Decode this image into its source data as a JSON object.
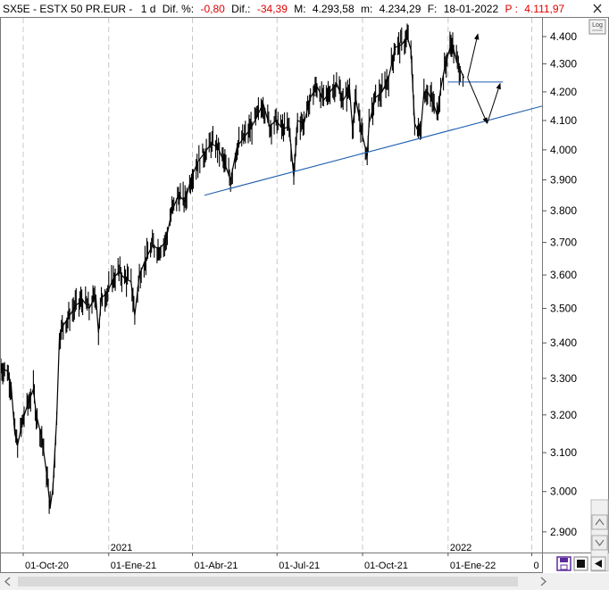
{
  "header": {
    "symbol": "SX5E - ESTX 50 PR.EUR -",
    "period": "1 d",
    "dif_pct_label": "Dif. %:",
    "dif_pct_value": "-0,80",
    "dif_label": "Dif.:",
    "dif_value": "-34,39",
    "max_label": "M:",
    "max_value": "4.293,58",
    "min_label": "m:",
    "min_value": "4.234,29",
    "date_label": "F:",
    "date_value": "18-01-2022",
    "price_label": "P :",
    "price_value": "4.111,97",
    "negative_color": "#e00000",
    "close_icon": "close-icon"
  },
  "controls": {
    "log_label": "Log",
    "save_icon": "save-icon",
    "color_icon": "color-swatch-icon",
    "scroll_left_icon": "chevron-left-icon",
    "scroll_right_icon": "chevron-right-icon",
    "scroll_up_icon": "chevron-up-icon",
    "scroll_down_icon": "chevron-down-icon"
  },
  "chart_data": {
    "type": "line",
    "x_tick_labels": [
      "01-Oct-20",
      "01-Ene-21",
      "01-Abr-21",
      "01-Jul-21",
      "01-Oct-21",
      "01-Ene-22",
      "0"
    ],
    "x_ticks": [
      "2020-10-01",
      "2021-01-01",
      "2021-04-01",
      "2021-07-01",
      "2021-10-01",
      "2022-01-01",
      "2022-04-01"
    ],
    "year_labels": [
      {
        "date": "2021-01-01",
        "label": "2021"
      },
      {
        "date": "2022-01-01",
        "label": "2022"
      }
    ],
    "x_range": [
      "2020-09-07",
      "2022-04-12"
    ],
    "y_ticks": [
      2900,
      3000,
      3100,
      3200,
      3300,
      3400,
      3500,
      3600,
      3700,
      3800,
      3900,
      4000,
      4100,
      4200,
      4300,
      4400
    ],
    "y_tick_labels": [
      "2.900",
      "3.000",
      "3.100",
      "3.200",
      "3.300",
      "3.400",
      "3.500",
      "3.600",
      "3.700",
      "3.800",
      "3.900",
      "4.000",
      "4.100",
      "4.200",
      "4.300",
      "4.400"
    ],
    "ylim": [
      2850,
      4470
    ],
    "y_scale": "log",
    "grid": "vertical dashed at x ticks",
    "series": [
      {
        "color": "#000000",
        "points": [
          [
            "2020-09-07",
            3330
          ],
          [
            "2020-09-14",
            3320
          ],
          [
            "2020-09-18",
            3280
          ],
          [
            "2020-09-22",
            3150
          ],
          [
            "2020-09-25",
            3120
          ],
          [
            "2020-10-01",
            3190
          ],
          [
            "2020-10-06",
            3230
          ],
          [
            "2020-10-12",
            3270
          ],
          [
            "2020-10-15",
            3200
          ],
          [
            "2020-10-21",
            3140
          ],
          [
            "2020-10-26",
            3050
          ],
          [
            "2020-10-30",
            2960
          ],
          [
            "2020-11-02",
            3010
          ],
          [
            "2020-11-06",
            3190
          ],
          [
            "2020-11-09",
            3420
          ],
          [
            "2020-11-13",
            3450
          ],
          [
            "2020-11-20",
            3480
          ],
          [
            "2020-11-27",
            3510
          ],
          [
            "2020-12-04",
            3525
          ],
          [
            "2020-12-11",
            3500
          ],
          [
            "2020-12-18",
            3540
          ],
          [
            "2020-12-21",
            3430
          ],
          [
            "2020-12-24",
            3530
          ],
          [
            "2020-12-31",
            3550
          ],
          [
            "2021-01-06",
            3590
          ],
          [
            "2021-01-12",
            3610
          ],
          [
            "2021-01-18",
            3590
          ],
          [
            "2021-01-25",
            3580
          ],
          [
            "2021-01-29",
            3480
          ],
          [
            "2021-02-03",
            3600
          ],
          [
            "2021-02-10",
            3650
          ],
          [
            "2021-02-17",
            3690
          ],
          [
            "2021-02-24",
            3680
          ],
          [
            "2021-03-03",
            3700
          ],
          [
            "2021-03-10",
            3800
          ],
          [
            "2021-03-17",
            3850
          ],
          [
            "2021-03-24",
            3830
          ],
          [
            "2021-03-31",
            3910
          ],
          [
            "2021-04-07",
            3960
          ],
          [
            "2021-04-14",
            3990
          ],
          [
            "2021-04-21",
            4020
          ],
          [
            "2021-04-28",
            4010
          ],
          [
            "2021-05-05",
            3960
          ],
          [
            "2021-05-12",
            3900
          ],
          [
            "2021-05-19",
            4010
          ],
          [
            "2021-05-26",
            4040
          ],
          [
            "2021-06-02",
            4070
          ],
          [
            "2021-06-09",
            4110
          ],
          [
            "2021-06-16",
            4160
          ],
          [
            "2021-06-23",
            4080
          ],
          [
            "2021-06-30",
            4100
          ],
          [
            "2021-07-07",
            4070
          ],
          [
            "2021-07-14",
            4080
          ],
          [
            "2021-07-19",
            3910
          ],
          [
            "2021-07-23",
            4100
          ],
          [
            "2021-07-30",
            4090
          ],
          [
            "2021-08-06",
            4180
          ],
          [
            "2021-08-13",
            4220
          ],
          [
            "2021-08-20",
            4170
          ],
          [
            "2021-08-27",
            4200
          ],
          [
            "2021-09-03",
            4230
          ],
          [
            "2021-09-10",
            4170
          ],
          [
            "2021-09-17",
            4210
          ],
          [
            "2021-09-20",
            4080
          ],
          [
            "2021-09-24",
            4170
          ],
          [
            "2021-09-30",
            4060
          ],
          [
            "2021-10-06",
            3980
          ],
          [
            "2021-10-08",
            4090
          ],
          [
            "2021-10-15",
            4180
          ],
          [
            "2021-10-22",
            4200
          ],
          [
            "2021-10-29",
            4250
          ],
          [
            "2021-11-05",
            4360
          ],
          [
            "2021-11-12",
            4370
          ],
          [
            "2021-11-18",
            4400
          ],
          [
            "2021-11-22",
            4350
          ],
          [
            "2021-11-26",
            4090
          ],
          [
            "2021-11-30",
            4060
          ],
          [
            "2021-12-03",
            4080
          ],
          [
            "2021-12-06",
            4200
          ],
          [
            "2021-12-10",
            4200
          ],
          [
            "2021-12-16",
            4160
          ],
          [
            "2021-12-20",
            4120
          ],
          [
            "2021-12-24",
            4210
          ],
          [
            "2021-12-29",
            4300
          ],
          [
            "2022-01-05",
            4380
          ],
          [
            "2022-01-10",
            4310
          ],
          [
            "2022-01-14",
            4280
          ],
          [
            "2022-01-18",
            4250
          ]
        ]
      }
    ],
    "annotations": [
      {
        "kind": "trendline",
        "color": "#1f5fb0",
        "from": [
          "2021-04-14",
          3850
        ],
        "to": [
          "2022-04-12",
          4150
        ]
      },
      {
        "kind": "horizontal_line",
        "color": "#1f5fb0",
        "from": [
          "2022-01-01",
          4235
        ],
        "to": [
          "2022-03-01",
          4235
        ]
      },
      {
        "kind": "arrow",
        "color": "#000000",
        "from": [
          "2022-01-22",
          4250
        ],
        "to": [
          "2022-02-02",
          4410
        ]
      },
      {
        "kind": "arrow",
        "color": "#000000",
        "from": [
          "2022-01-22",
          4250
        ],
        "to": [
          "2022-02-12",
          4090
        ]
      },
      {
        "kind": "arrow",
        "color": "#000000",
        "from": [
          "2022-02-12",
          4090
        ],
        "to": [
          "2022-02-26",
          4230
        ]
      }
    ]
  }
}
